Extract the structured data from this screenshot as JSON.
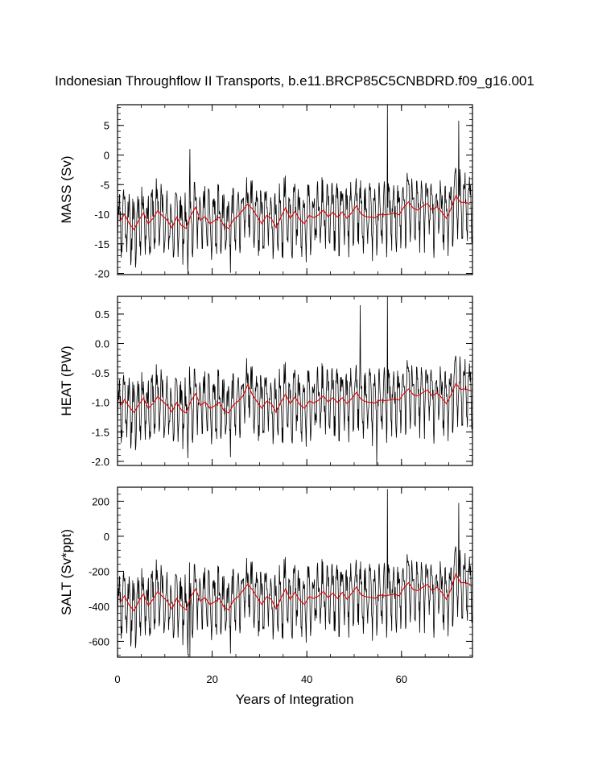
{
  "figure": {
    "title": "Indonesian Throughflow II Transports, b.e11.BRCP85C5CNBDRD.f09_g16.001",
    "xlabel": "Years of Integration"
  },
  "chart_data": [
    {
      "type": "line",
      "ylabel": "MASS (Sv)",
      "xlim": [
        0,
        75
      ],
      "ylim": [
        -20.2,
        8.5
      ],
      "yticks": [
        5,
        0,
        -5,
        -10,
        -15,
        -20
      ],
      "ytick_labels": [
        "5",
        "0",
        "-5",
        "-10",
        "-15",
        "-20"
      ],
      "xticks": [
        0,
        20,
        40,
        60
      ],
      "xtick_labels": [
        "0",
        "20",
        "40",
        "60"
      ],
      "show_xtick_labels": false,
      "monthly_series": {
        "name": "",
        "color": "#000000",
        "start": 0.0417,
        "step": 0.0833,
        "base": -10.5,
        "amp": 4.8,
        "seed": 11,
        "spikes": [
          [
            57.0,
            8.5
          ],
          [
            72.1,
            5.8
          ],
          [
            15.3,
            1.0
          ]
        ]
      },
      "annual_series": {
        "name": "",
        "color": "#dd0000",
        "x": [
          0.5,
          1.5,
          2.5,
          3.5,
          4.5,
          5.5,
          6.5,
          7.5,
          8.5,
          9.5,
          10.5,
          11.5,
          12.5,
          13.5,
          14.5,
          15.5,
          16.5,
          17.5,
          18.5,
          19.5,
          20.5,
          21.5,
          22.5,
          23.5,
          24.5,
          25.5,
          26.5,
          27.5,
          28.5,
          29.5,
          30.5,
          31.5,
          32.5,
          33.5,
          34.5,
          35.5,
          36.5,
          37.5,
          38.5,
          39.5,
          40.5,
          41.5,
          42.5,
          43.5,
          44.5,
          45.5,
          46.5,
          47.5,
          48.5,
          49.5,
          50.5,
          51.5,
          52.5,
          53.5,
          54.5,
          55.5,
          56.5,
          57.5,
          58.5,
          59.5,
          60.5,
          61.5,
          62.5,
          63.5,
          64.5,
          65.5,
          66.5,
          67.5,
          68.5,
          69.5,
          70.5,
          71.5,
          72.5,
          73.5,
          74.5
        ],
        "values": [
          -11.2,
          -10.0,
          -11.6,
          -12.6,
          -11.0,
          -9.8,
          -11.6,
          -10.7,
          -9.4,
          -10.3,
          -11.0,
          -12.3,
          -10.5,
          -11.9,
          -12.4,
          -10.2,
          -8.8,
          -11.0,
          -10.4,
          -11.6,
          -11.1,
          -10.5,
          -12.0,
          -12.4,
          -10.9,
          -10.3,
          -9.3,
          -8.3,
          -9.1,
          -10.4,
          -11.6,
          -10.2,
          -10.7,
          -12.3,
          -10.5,
          -8.9,
          -10.7,
          -9.5,
          -10.9,
          -11.6,
          -10.2,
          -10.6,
          -10.1,
          -9.3,
          -10.4,
          -9.7,
          -10.5,
          -9.6,
          -10.7,
          -9.7,
          -8.6,
          -10.0,
          -10.4,
          -10.5,
          -10.6,
          -10.0,
          -10.1,
          -10.0,
          -9.8,
          -10.1,
          -8.8,
          -7.9,
          -9.0,
          -9.3,
          -8.6,
          -8.2,
          -9.3,
          -8.7,
          -9.6,
          -10.7,
          -9.0,
          -6.9,
          -8.0,
          -8.0,
          -8.3
        ]
      }
    },
    {
      "type": "line",
      "ylabel": "HEAT (PW)",
      "xlim": [
        0,
        75
      ],
      "ylim": [
        -2.07,
        0.8
      ],
      "yticks": [
        0.5,
        0.0,
        -0.5,
        -1.0,
        -1.5,
        -2.0
      ],
      "ytick_labels": [
        "0.5",
        "0.0",
        "-0.5",
        "-1.0",
        "-1.5",
        "-2.0"
      ],
      "xticks": [
        0,
        20,
        40,
        60
      ],
      "xtick_labels": [
        "0",
        "20",
        "40",
        "60"
      ],
      "show_xtick_labels": false,
      "monthly_series": {
        "name": "",
        "color": "#000000",
        "start": 0.0417,
        "step": 0.0833,
        "base": -1.0,
        "amp": 0.48,
        "seed": 11,
        "spikes": [
          [
            57.0,
            0.8
          ],
          [
            54.8,
            -2.07
          ],
          [
            51.3,
            0.65
          ]
        ]
      },
      "annual_series": {
        "name": "",
        "color": "#dd0000",
        "x": [
          0.5,
          1.5,
          2.5,
          3.5,
          4.5,
          5.5,
          6.5,
          7.5,
          8.5,
          9.5,
          10.5,
          11.5,
          12.5,
          13.5,
          14.5,
          15.5,
          16.5,
          17.5,
          18.5,
          19.5,
          20.5,
          21.5,
          22.5,
          23.5,
          24.5,
          25.5,
          26.5,
          27.5,
          28.5,
          29.5,
          30.5,
          31.5,
          32.5,
          33.5,
          34.5,
          35.5,
          36.5,
          37.5,
          38.5,
          39.5,
          40.5,
          41.5,
          42.5,
          43.5,
          44.5,
          45.5,
          46.5,
          47.5,
          48.5,
          49.5,
          50.5,
          51.5,
          52.5,
          53.5,
          54.5,
          55.5,
          56.5,
          57.5,
          58.5,
          59.5,
          60.5,
          61.5,
          62.5,
          63.5,
          64.5,
          65.5,
          66.5,
          67.5,
          68.5,
          69.5,
          70.5,
          71.5,
          72.5,
          73.5,
          74.5
        ],
        "values": [
          -1.07,
          -0.95,
          -1.08,
          -1.17,
          -1.04,
          -0.93,
          -1.1,
          -1.02,
          -0.9,
          -0.98,
          -1.05,
          -1.16,
          -1.0,
          -1.13,
          -1.18,
          -0.98,
          -0.85,
          -1.05,
          -0.99,
          -1.1,
          -1.06,
          -1.0,
          -1.14,
          -1.18,
          -1.04,
          -0.98,
          -0.89,
          -0.7,
          -0.87,
          -0.99,
          -1.1,
          -0.98,
          -1.02,
          -1.17,
          -1.0,
          -0.86,
          -1.02,
          -0.91,
          -1.04,
          -1.1,
          -0.98,
          -1.01,
          -0.96,
          -0.89,
          -0.99,
          -0.92,
          -1.0,
          -0.92,
          -1.02,
          -0.93,
          -0.83,
          -0.95,
          -0.99,
          -1.0,
          -1.01,
          -0.96,
          -0.97,
          -0.96,
          -0.94,
          -0.96,
          -0.85,
          -0.77,
          -0.87,
          -0.89,
          -0.83,
          -0.79,
          -0.89,
          -0.84,
          -0.92,
          -1.02,
          -0.87,
          -0.68,
          -0.78,
          -0.77,
          -0.8
        ]
      }
    },
    {
      "type": "line",
      "ylabel": "SALT (Sv*ppt)",
      "xlim": [
        0,
        75
      ],
      "ylim": [
        -690,
        280
      ],
      "yticks": [
        200,
        0,
        -200,
        -400,
        -600
      ],
      "ytick_labels": [
        "200",
        "0",
        "-200",
        "-400",
        "-600"
      ],
      "xticks": [
        0,
        20,
        40,
        60
      ],
      "xtick_labels": [
        "0",
        "20",
        "40",
        "60"
      ],
      "show_xtick_labels": true,
      "monthly_series": {
        "name": "",
        "color": "#000000",
        "start": 0.0417,
        "step": 0.0833,
        "base": -355,
        "amp": 160,
        "seed": 11,
        "spikes": [
          [
            57.0,
            270
          ],
          [
            72.1,
            190
          ],
          [
            15.3,
            -690
          ]
        ]
      },
      "annual_series": {
        "name": "",
        "color": "#dd0000",
        "x": [
          0.5,
          1.5,
          2.5,
          3.5,
          4.5,
          5.5,
          6.5,
          7.5,
          8.5,
          9.5,
          10.5,
          11.5,
          12.5,
          13.5,
          14.5,
          15.5,
          16.5,
          17.5,
          18.5,
          19.5,
          20.5,
          21.5,
          22.5,
          23.5,
          24.5,
          25.5,
          26.5,
          27.5,
          28.5,
          29.5,
          30.5,
          31.5,
          32.5,
          33.5,
          34.5,
          35.5,
          36.5,
          37.5,
          38.5,
          39.5,
          40.5,
          41.5,
          42.5,
          43.5,
          44.5,
          45.5,
          46.5,
          47.5,
          48.5,
          49.5,
          50.5,
          51.5,
          52.5,
          53.5,
          54.5,
          55.5,
          56.5,
          57.5,
          58.5,
          59.5,
          60.5,
          61.5,
          62.5,
          63.5,
          64.5,
          65.5,
          66.5,
          67.5,
          68.5,
          69.5,
          70.5,
          71.5,
          72.5,
          73.5,
          74.5
        ],
        "values": [
          -380,
          -340,
          -395,
          -425,
          -370,
          -330,
          -395,
          -360,
          -315,
          -345,
          -370,
          -415,
          -355,
          -400,
          -420,
          -345,
          -300,
          -370,
          -350,
          -390,
          -375,
          -355,
          -405,
          -420,
          -365,
          -345,
          -310,
          -275,
          -305,
          -350,
          -390,
          -345,
          -360,
          -415,
          -355,
          -300,
          -360,
          -320,
          -365,
          -390,
          -345,
          -355,
          -340,
          -315,
          -350,
          -325,
          -355,
          -320,
          -360,
          -325,
          -290,
          -335,
          -345,
          -350,
          -355,
          -335,
          -340,
          -335,
          -330,
          -340,
          -295,
          -265,
          -305,
          -310,
          -290,
          -275,
          -310,
          -290,
          -320,
          -360,
          -300,
          -215,
          -265,
          -265,
          -275
        ]
      }
    }
  ]
}
